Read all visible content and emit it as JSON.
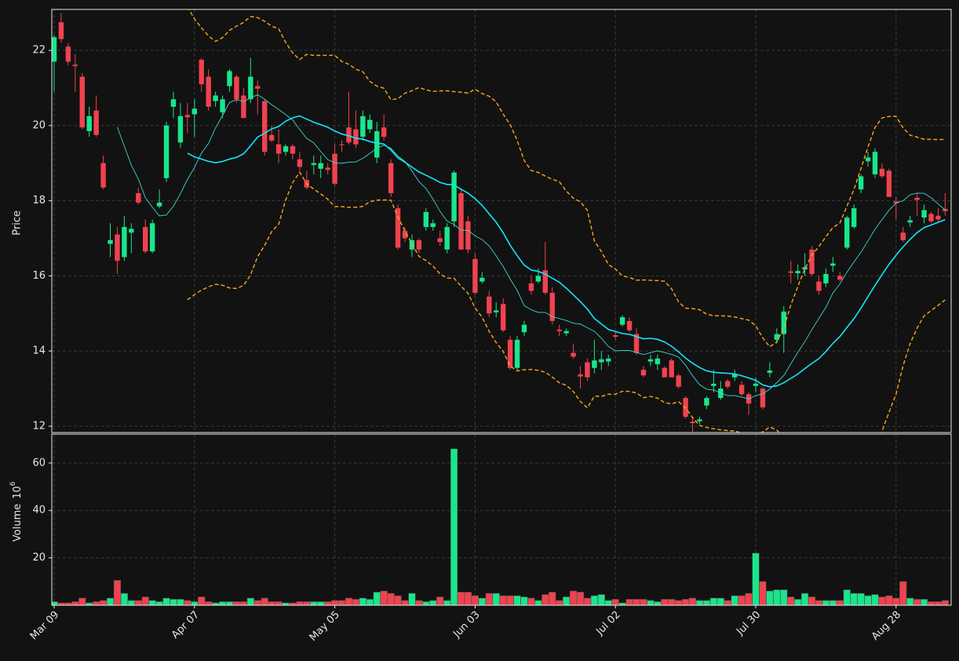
{
  "chart_data": {
    "type": "candlestick",
    "ylabel": "Price",
    "volume_ylabel": "Volume",
    "volume_scale_base": "10",
    "volume_scale_exponent": "6",
    "categories": [
      "Mar 09",
      null,
      null,
      null,
      null,
      null,
      null,
      null,
      null,
      null,
      null,
      null,
      null,
      null,
      null,
      null,
      null,
      null,
      null,
      null,
      "Apr 07",
      null,
      null,
      null,
      null,
      null,
      null,
      null,
      null,
      null,
      null,
      null,
      null,
      null,
      null,
      null,
      null,
      null,
      null,
      null,
      "May 05",
      null,
      null,
      null,
      null,
      null,
      null,
      null,
      null,
      null,
      null,
      null,
      null,
      null,
      null,
      null,
      null,
      null,
      null,
      null,
      "Jun 03",
      null,
      null,
      null,
      null,
      null,
      null,
      null,
      null,
      null,
      null,
      null,
      null,
      null,
      null,
      null,
      null,
      null,
      null,
      null,
      "Jul 02",
      null,
      null,
      null,
      null,
      null,
      null,
      null,
      null,
      null,
      null,
      null,
      null,
      null,
      null,
      null,
      null,
      null,
      null,
      null,
      "Jul 30",
      null,
      null,
      null,
      null,
      null,
      null,
      null,
      null,
      null,
      null,
      null,
      null,
      null,
      null,
      null,
      null,
      null,
      null,
      null,
      "Aug 28",
      null,
      null,
      null,
      null,
      null,
      null,
      null
    ],
    "ohlc": [
      [
        21.7,
        22.4,
        20.9,
        22.35
      ],
      [
        22.75,
        23.0,
        22.2,
        22.3
      ],
      [
        22.1,
        22.2,
        21.6,
        21.7
      ],
      [
        21.62,
        21.9,
        20.9,
        21.58
      ],
      [
        21.3,
        21.4,
        19.9,
        19.95
      ],
      [
        19.85,
        20.5,
        19.7,
        20.25
      ],
      [
        20.4,
        20.8,
        19.7,
        19.75
      ],
      [
        19.0,
        19.2,
        18.3,
        18.35
      ],
      [
        16.85,
        17.4,
        16.5,
        16.95
      ],
      [
        17.1,
        17.3,
        16.05,
        16.4
      ],
      [
        16.5,
        17.6,
        16.4,
        17.3
      ],
      [
        17.15,
        17.4,
        16.6,
        17.25
      ],
      [
        18.2,
        18.35,
        17.9,
        17.95
      ],
      [
        17.3,
        17.5,
        16.6,
        16.65
      ],
      [
        16.65,
        17.5,
        16.6,
        17.4
      ],
      [
        17.85,
        18.3,
        17.8,
        17.95
      ],
      [
        18.6,
        20.1,
        18.5,
        20.0
      ],
      [
        20.5,
        20.9,
        20.2,
        20.7
      ],
      [
        19.55,
        20.6,
        19.4,
        20.25
      ],
      [
        20.28,
        20.6,
        19.8,
        20.22
      ],
      [
        20.3,
        20.7,
        19.7,
        20.45
      ],
      [
        21.75,
        21.8,
        20.9,
        21.1
      ],
      [
        21.3,
        21.5,
        20.4,
        20.5
      ],
      [
        20.65,
        20.9,
        20.5,
        20.8
      ],
      [
        20.35,
        20.8,
        20.2,
        20.7
      ],
      [
        21.05,
        21.5,
        20.9,
        21.45
      ],
      [
        21.3,
        21.35,
        20.6,
        20.7
      ],
      [
        20.8,
        21.0,
        20.2,
        20.2
      ],
      [
        20.7,
        21.8,
        20.6,
        21.3
      ],
      [
        21.05,
        21.2,
        20.3,
        20.98
      ],
      [
        20.65,
        20.7,
        19.2,
        19.3
      ],
      [
        19.75,
        20.0,
        19.55,
        19.6
      ],
      [
        19.5,
        19.9,
        19.0,
        19.25
      ],
      [
        19.3,
        19.5,
        19.2,
        19.45
      ],
      [
        19.45,
        19.5,
        19.1,
        19.25
      ],
      [
        19.1,
        19.3,
        18.8,
        18.9
      ],
      [
        18.55,
        18.8,
        18.3,
        18.35
      ],
      [
        18.95,
        19.2,
        18.7,
        19.0
      ],
      [
        18.85,
        19.2,
        18.6,
        19.0
      ],
      [
        18.88,
        19.0,
        18.7,
        18.82
      ],
      [
        19.25,
        19.5,
        18.4,
        18.45
      ],
      [
        19.5,
        19.6,
        19.3,
        19.48
      ],
      [
        19.95,
        20.9,
        19.5,
        19.55
      ],
      [
        19.9,
        20.4,
        19.4,
        19.5
      ],
      [
        19.7,
        20.4,
        19.6,
        20.25
      ],
      [
        19.9,
        20.3,
        19.8,
        20.15
      ],
      [
        19.15,
        20.1,
        19.0,
        19.85
      ],
      [
        19.95,
        20.3,
        19.6,
        19.7
      ],
      [
        19.0,
        19.1,
        18.1,
        18.2
      ],
      [
        17.8,
        17.9,
        16.7,
        16.75
      ],
      [
        17.2,
        17.3,
        16.9,
        17.0
      ],
      [
        16.7,
        17.1,
        16.5,
        16.95
      ],
      [
        16.95,
        17.0,
        16.6,
        16.7
      ],
      [
        17.3,
        17.8,
        17.2,
        17.7
      ],
      [
        17.3,
        17.5,
        17.2,
        17.4
      ],
      [
        17.0,
        17.2,
        16.8,
        16.9
      ],
      [
        16.7,
        17.4,
        16.6,
        17.3
      ],
      [
        17.45,
        18.8,
        17.3,
        18.75
      ],
      [
        18.2,
        18.3,
        16.7,
        16.7
      ],
      [
        17.45,
        17.6,
        16.6,
        16.7
      ],
      [
        16.45,
        16.6,
        15.5,
        15.55
      ],
      [
        15.85,
        16.1,
        15.8,
        15.95
      ],
      [
        15.45,
        15.6,
        14.9,
        15.0
      ],
      [
        15.03,
        15.3,
        14.9,
        15.08
      ],
      [
        15.25,
        15.4,
        14.5,
        14.55
      ],
      [
        14.3,
        14.4,
        13.5,
        13.55
      ],
      [
        13.55,
        14.4,
        13.5,
        14.3
      ],
      [
        14.5,
        14.8,
        14.4,
        14.7
      ],
      [
        15.8,
        16.0,
        15.5,
        15.6
      ],
      [
        15.85,
        16.2,
        15.8,
        16.0
      ],
      [
        16.15,
        16.9,
        15.5,
        15.55
      ],
      [
        15.55,
        15.7,
        14.7,
        14.8
      ],
      [
        14.57,
        14.7,
        14.4,
        14.53
      ],
      [
        14.47,
        14.6,
        14.4,
        14.53
      ],
      [
        13.95,
        14.2,
        13.8,
        13.85
      ],
      [
        13.38,
        13.6,
        13.0,
        13.32
      ],
      [
        13.7,
        13.8,
        13.2,
        13.3
      ],
      [
        13.55,
        14.3,
        13.4,
        13.75
      ],
      [
        13.7,
        14.0,
        13.5,
        13.78
      ],
      [
        13.72,
        13.9,
        13.6,
        13.8
      ],
      [
        14.42,
        14.5,
        14.3,
        14.38
      ],
      [
        14.7,
        14.95,
        14.65,
        14.9
      ],
      [
        14.8,
        14.9,
        14.5,
        14.55
      ],
      [
        14.45,
        14.6,
        13.9,
        13.95
      ],
      [
        13.5,
        13.6,
        13.3,
        13.35
      ],
      [
        13.72,
        13.9,
        13.6,
        13.78
      ],
      [
        13.65,
        13.9,
        13.5,
        13.8
      ],
      [
        13.55,
        13.6,
        13.3,
        13.3
      ],
      [
        13.75,
        13.8,
        13.3,
        13.3
      ],
      [
        13.35,
        13.4,
        13.0,
        13.05
      ],
      [
        12.75,
        12.8,
        12.2,
        12.25
      ],
      [
        12.12,
        12.2,
        11.85,
        12.08
      ],
      [
        12.13,
        12.25,
        12.05,
        12.18
      ],
      [
        12.55,
        12.8,
        12.45,
        12.75
      ],
      [
        13.07,
        13.5,
        12.9,
        13.13
      ],
      [
        12.75,
        13.2,
        12.7,
        13.0
      ],
      [
        13.2,
        13.25,
        13.0,
        13.05
      ],
      [
        13.3,
        13.5,
        13.2,
        13.38
      ],
      [
        13.1,
        13.2,
        12.8,
        12.85
      ],
      [
        12.85,
        12.9,
        12.3,
        12.6
      ],
      [
        13.07,
        13.3,
        12.9,
        13.13
      ],
      [
        13.0,
        13.05,
        12.45,
        12.5
      ],
      [
        13.42,
        13.7,
        13.3,
        13.48
      ],
      [
        14.3,
        14.6,
        14.2,
        14.45
      ],
      [
        14.45,
        15.2,
        13.95,
        15.05
      ],
      [
        16.12,
        16.4,
        15.8,
        16.08
      ],
      [
        16.07,
        16.3,
        15.9,
        16.13
      ],
      [
        16.17,
        16.6,
        16.0,
        16.23
      ],
      [
        16.7,
        16.8,
        16.0,
        16.05
      ],
      [
        15.85,
        16.0,
        15.5,
        15.6
      ],
      [
        15.8,
        16.2,
        15.7,
        16.05
      ],
      [
        16.27,
        16.5,
        16.1,
        16.33
      ],
      [
        16.0,
        16.1,
        15.85,
        15.9
      ],
      [
        16.75,
        17.6,
        16.7,
        17.55
      ],
      [
        17.3,
        17.9,
        17.25,
        17.8
      ],
      [
        18.3,
        18.7,
        18.2,
        18.65
      ],
      [
        19.05,
        19.3,
        18.9,
        19.15
      ],
      [
        18.7,
        19.4,
        18.6,
        19.3
      ],
      [
        18.85,
        19.0,
        18.6,
        18.65
      ],
      [
        18.8,
        18.85,
        18.1,
        18.1
      ],
      [
        17.98,
        18.1,
        17.5,
        17.93
      ],
      [
        17.15,
        17.3,
        16.9,
        16.95
      ],
      [
        17.42,
        17.6,
        17.3,
        17.48
      ],
      [
        18.08,
        18.2,
        17.6,
        18.02
      ],
      [
        17.55,
        17.9,
        17.4,
        17.75
      ],
      [
        17.65,
        17.7,
        17.4,
        17.45
      ],
      [
        17.6,
        17.8,
        17.4,
        17.5
      ],
      [
        17.78,
        18.2,
        17.6,
        17.72
      ]
    ],
    "volume": [
      1.5,
      1,
      1,
      1.5,
      3,
      1,
      1.5,
      2,
      3,
      10.5,
      5,
      2,
      2,
      3.5,
      2,
      1.5,
      3,
      2.5,
      2.5,
      2,
      1.5,
      3.5,
      1.5,
      1,
      1.5,
      1.5,
      1.5,
      1.5,
      3,
      2,
      3,
      1.5,
      1.5,
      1,
      1,
      1.5,
      1.5,
      1.5,
      1.5,
      1.5,
      2,
      2,
      3,
      2.5,
      3,
      2.5,
      5.5,
      6,
      5,
      4,
      2,
      5,
      2,
      1.5,
      2,
      3.5,
      2,
      66,
      5.5,
      5.5,
      4,
      3,
      5,
      5,
      4,
      4,
      4,
      3.5,
      3,
      2,
      4.5,
      5.5,
      2,
      3.5,
      6,
      5.5,
      3,
      4,
      4.5,
      2,
      2.5,
      1,
      2.5,
      2.5,
      2.5,
      2,
      1.5,
      2.5,
      2.5,
      2,
      2.5,
      3,
      2,
      2,
      3,
      3,
      2,
      4,
      4,
      5,
      22,
      10,
      6,
      6.5,
      6.5,
      3.5,
      2.5,
      5,
      3.5,
      2,
      2,
      2,
      2,
      6.5,
      5,
      5,
      4,
      4.5,
      3.5,
      4,
      3,
      10,
      3,
      2.5,
      2.5,
      1.5,
      1.5,
      2
    ],
    "up_color": "#19e68c",
    "down_color": "#f0424f",
    "moving_averages": [
      {
        "window": 10,
        "color": "#3fd6d0"
      },
      {
        "window": 20,
        "color": "#12e6ff"
      }
    ],
    "bollinger": {
      "window": 20,
      "num_std": 2,
      "color": "#ffa51a"
    },
    "ylim": [
      11.83,
      23.09
    ],
    "yticks": [
      12,
      14,
      16,
      18,
      20,
      22
    ],
    "volume_ylim": [
      0,
      72.2
    ],
    "volume_yticks": [
      20,
      40,
      60
    ],
    "grid": true
  }
}
